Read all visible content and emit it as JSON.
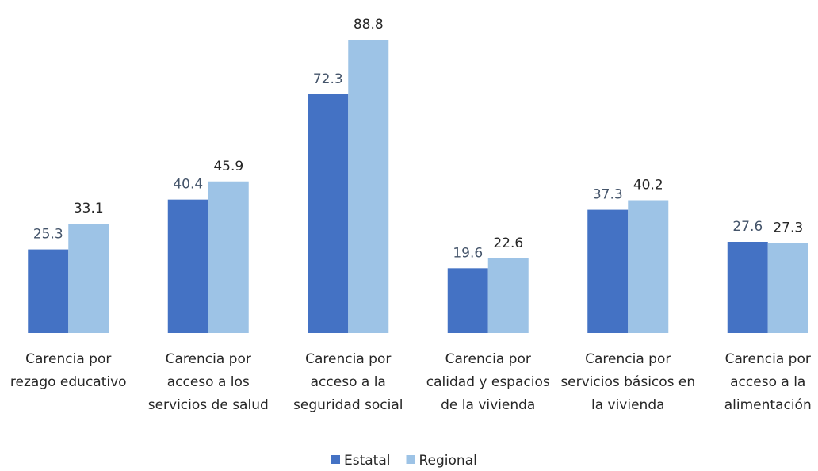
{
  "chart_data": {
    "type": "bar",
    "categories": [
      [
        "Carencia por",
        "rezago educativo"
      ],
      [
        "Carencia por",
        "acceso a los",
        "servicios de salud"
      ],
      [
        "Carencia por",
        "acceso a la",
        "seguridad social"
      ],
      [
        "Carencia por",
        "calidad y espacios",
        "de la vivienda"
      ],
      [
        "Carencia por",
        "servicios básicos en",
        "la vivienda"
      ],
      [
        "Carencia por",
        "acceso a la",
        "alimentación"
      ]
    ],
    "series": [
      {
        "name": "Estatal",
        "color": "#4472c4",
        "label_color": "#44546a",
        "values": [
          25.3,
          40.4,
          72.3,
          19.6,
          37.3,
          27.6
        ]
      },
      {
        "name": "Regional",
        "color": "#9dc3e6",
        "label_color": "#262626",
        "values": [
          33.1,
          45.9,
          88.8,
          22.6,
          40.2,
          27.3
        ]
      }
    ],
    "legend": "bottom"
  }
}
